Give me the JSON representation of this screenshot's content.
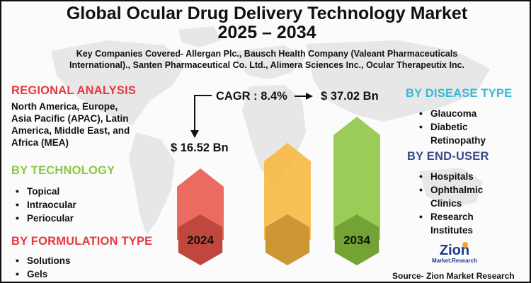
{
  "title_line1": "Global Ocular Drug Delivery Technology Market",
  "title_line2": "2025 – 2034",
  "companies_line1": "Key Companies Covered- Allergan Plc., Bausch Health Company (Valeant Pharmaceuticals",
  "companies_line2": "International)., Santen Pharmaceutical Co. Ltd., Alimera Sciences Inc., Ocular Therapeutix Inc.",
  "regional": {
    "heading": "REGIONAL ANALYSIS",
    "text_lines": [
      "North America, Europe,",
      "Asia Pacific (APAC), Latin",
      "America, Middle East, and",
      "Africa (MEA)"
    ]
  },
  "technology": {
    "heading": "BY TECHNOLOGY",
    "items": [
      "Topical",
      "Intraocular",
      "Periocular"
    ]
  },
  "formulation": {
    "heading": "BY FORMULATION TYPE",
    "items": [
      "Solutions",
      "Gels"
    ]
  },
  "disease": {
    "heading": "BY DISEASE TYPE",
    "items": [
      "Glaucoma",
      "Diabetic",
      "Retinopathy"
    ]
  },
  "enduser": {
    "heading": "BY END-USER",
    "items": [
      "Hospitals",
      "Ophthalmic",
      "Clinics",
      "Research",
      "Institutes"
    ]
  },
  "cagr_label": "CAGR : 8.4%",
  "chart_data": {
    "type": "bar",
    "categories": [
      "2024",
      "",
      "2034"
    ],
    "values": [
      16.52,
      null,
      37.02
    ],
    "value_labels": [
      "$ 16.52 Bn",
      "",
      "$ 37.02 Bn"
    ],
    "colors": [
      "#e9564a",
      "#f7b73e",
      "#8cc641"
    ]
  },
  "logo": {
    "line1": "Zion",
    "line2": "Market.Research"
  },
  "source": "Source- Zion Market Research"
}
